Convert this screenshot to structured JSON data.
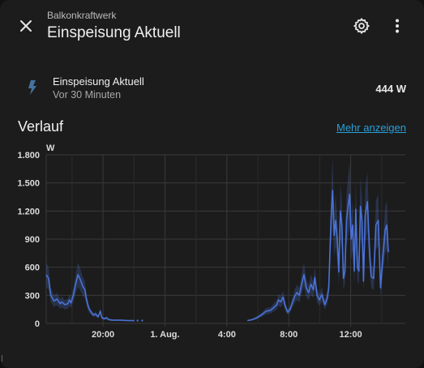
{
  "header": {
    "subtitle": "Balkonkraftwerk",
    "title": "Einspeisung Aktuell",
    "close_icon": "close-icon",
    "settings_icon": "gear-icon",
    "menu_icon": "more-vertical-icon"
  },
  "entity": {
    "icon": "flash-icon",
    "icon_color": "#44739e",
    "name": "Einspeisung Aktuell",
    "last_changed": "Vor 30 Minuten",
    "value": "444 W"
  },
  "history": {
    "title": "Verlauf",
    "more_link": "Mehr anzeigen"
  },
  "chart_data": {
    "type": "line",
    "ylabel": "W",
    "ylim": [
      0,
      1800
    ],
    "y_ticks": [
      0,
      300,
      600,
      900,
      1200,
      1500,
      1800
    ],
    "y_tick_labels": [
      "0",
      "300",
      "600",
      "900",
      "1.200",
      "1.500",
      "1.800"
    ],
    "x_range_hours": [
      16.3,
      15.5
    ],
    "x_ticks": [
      "20:00",
      "1. Aug.",
      "4:00",
      "8:00",
      "12:00"
    ],
    "series_color": "#4a72d6",
    "grid": true,
    "series": [
      {
        "name": "Einspeisung Aktuell",
        "points": [
          [
            0,
            520
          ],
          [
            0.15,
            480
          ],
          [
            0.3,
            300
          ],
          [
            0.5,
            240
          ],
          [
            0.7,
            260
          ],
          [
            0.9,
            210
          ],
          [
            1.0,
            230
          ],
          [
            1.2,
            200
          ],
          [
            1.4,
            210
          ],
          [
            1.5,
            250
          ],
          [
            1.6,
            220
          ],
          [
            1.75,
            300
          ],
          [
            1.9,
            420
          ],
          [
            2.05,
            520
          ],
          [
            2.2,
            470
          ],
          [
            2.35,
            400
          ],
          [
            2.5,
            360
          ],
          [
            2.6,
            260
          ],
          [
            2.75,
            160
          ],
          [
            2.9,
            120
          ],
          [
            3.05,
            90
          ],
          [
            3.2,
            100
          ],
          [
            3.35,
            70
          ],
          [
            3.5,
            130
          ],
          [
            3.6,
            60
          ],
          [
            3.75,
            50
          ],
          [
            3.9,
            60
          ],
          [
            4.05,
            40
          ],
          [
            4.3,
            35
          ],
          [
            4.8,
            35
          ],
          [
            5.3,
            30
          ],
          [
            5.7,
            30
          ]
        ],
        "points_late": [
          [
            13.0,
            30
          ],
          [
            13.3,
            40
          ],
          [
            13.6,
            60
          ],
          [
            13.9,
            90
          ],
          [
            14.2,
            130
          ],
          [
            14.5,
            140
          ],
          [
            14.7,
            170
          ],
          [
            14.9,
            200
          ],
          [
            15.0,
            250
          ],
          [
            15.15,
            230
          ],
          [
            15.3,
            280
          ],
          [
            15.45,
            180
          ],
          [
            15.6,
            120
          ],
          [
            15.75,
            150
          ],
          [
            15.9,
            220
          ],
          [
            16.05,
            290
          ],
          [
            16.2,
            330
          ],
          [
            16.35,
            300
          ],
          [
            16.5,
            420
          ],
          [
            16.65,
            520
          ],
          [
            16.8,
            380
          ],
          [
            16.95,
            330
          ],
          [
            17.1,
            420
          ],
          [
            17.25,
            360
          ],
          [
            17.35,
            490
          ],
          [
            17.5,
            300
          ],
          [
            17.65,
            250
          ],
          [
            17.8,
            310
          ],
          [
            18.0,
            200
          ],
          [
            18.15,
            270
          ],
          [
            18.25,
            380
          ],
          [
            18.4,
            1100
          ],
          [
            18.5,
            1420
          ],
          [
            18.6,
            940
          ],
          [
            18.7,
            1100
          ],
          [
            18.8,
            900
          ],
          [
            18.9,
            550
          ],
          [
            19.0,
            1200
          ],
          [
            19.1,
            1050
          ],
          [
            19.2,
            480
          ],
          [
            19.3,
            560
          ],
          [
            19.4,
            1100
          ],
          [
            19.5,
            1250
          ],
          [
            19.6,
            1380
          ],
          [
            19.7,
            900
          ],
          [
            19.8,
            1050
          ],
          [
            19.9,
            560
          ],
          [
            20.0,
            1220
          ],
          [
            20.1,
            600
          ],
          [
            20.2,
            560
          ],
          [
            20.3,
            1250
          ],
          [
            20.4,
            1100
          ],
          [
            20.5,
            450
          ],
          [
            20.6,
            1150
          ],
          [
            20.75,
            1300
          ],
          [
            20.9,
            720
          ],
          [
            21.0,
            500
          ],
          [
            21.15,
            480
          ],
          [
            21.3,
            1050
          ],
          [
            21.45,
            1100
          ],
          [
            21.6,
            380
          ],
          [
            21.75,
            720
          ],
          [
            21.9,
            1000
          ],
          [
            22.0,
            1050
          ],
          [
            22.1,
            760
          ]
        ]
      }
    ]
  }
}
